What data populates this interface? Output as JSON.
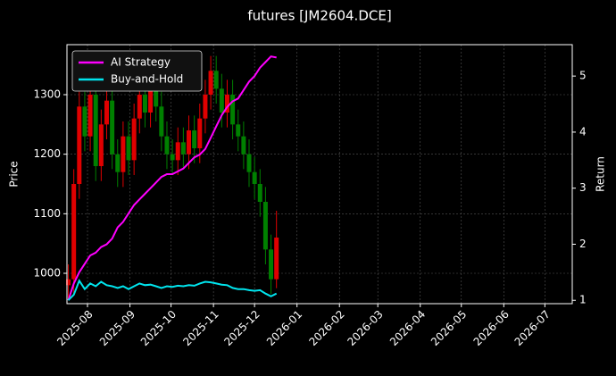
{
  "chart_data": {
    "type": "candlestick",
    "title": "futures [JM2604.DCE]",
    "ylabel": "Price",
    "y2label": "Return",
    "x": [
      "2025-07-18",
      "2025-07-22",
      "2025-07-26",
      "2025-07-30",
      "2025-08-03",
      "2025-08-07",
      "2025-08-11",
      "2025-08-15",
      "2025-08-19",
      "2025-08-23",
      "2025-08-27",
      "2025-08-31",
      "2025-09-04",
      "2025-09-08",
      "2025-09-12",
      "2025-09-16",
      "2025-09-20",
      "2025-09-24",
      "2025-09-28",
      "2025-10-02",
      "2025-10-06",
      "2025-10-10",
      "2025-10-14",
      "2025-10-18",
      "2025-10-22",
      "2025-10-26",
      "2025-10-30",
      "2025-11-03",
      "2025-11-07",
      "2025-11-11",
      "2025-11-15",
      "2025-11-19",
      "2025-11-23",
      "2025-11-27",
      "2025-12-01",
      "2025-12-05",
      "2025-12-09",
      "2025-12-13",
      "2025-12-17"
    ],
    "open": [
      980,
      990,
      1150,
      1280,
      1230,
      1300,
      1180,
      1250,
      1290,
      1200,
      1170,
      1230,
      1190,
      1260,
      1300,
      1270,
      1320,
      1280,
      1230,
      1200,
      1190,
      1220,
      1200,
      1240,
      1210,
      1260,
      1300,
      1340,
      1310,
      1270,
      1300,
      1250,
      1230,
      1200,
      1170,
      1150,
      1120,
      1040,
      990
    ],
    "high": [
      1015,
      1175,
      1305,
      1305,
      1325,
      1325,
      1275,
      1315,
      1315,
      1225,
      1255,
      1255,
      1285,
      1325,
      1325,
      1345,
      1345,
      1305,
      1255,
      1225,
      1245,
      1245,
      1265,
      1265,
      1285,
      1325,
      1365,
      1365,
      1335,
      1325,
      1325,
      1275,
      1255,
      1225,
      1195,
      1175,
      1145,
      1065,
      1105
    ],
    "low": [
      955,
      965,
      1125,
      1205,
      1205,
      1155,
      1155,
      1225,
      1175,
      1145,
      1145,
      1165,
      1165,
      1235,
      1245,
      1245,
      1255,
      1205,
      1175,
      1165,
      1165,
      1175,
      1175,
      1185,
      1185,
      1235,
      1275,
      1285,
      1245,
      1245,
      1225,
      1205,
      1175,
      1145,
      1125,
      1095,
      1015,
      965,
      975
    ],
    "close": [
      990,
      1150,
      1280,
      1230,
      1300,
      1180,
      1250,
      1290,
      1200,
      1170,
      1230,
      1190,
      1260,
      1300,
      1270,
      1320,
      1280,
      1230,
      1200,
      1190,
      1220,
      1200,
      1240,
      1210,
      1260,
      1300,
      1340,
      1310,
      1270,
      1300,
      1250,
      1230,
      1200,
      1170,
      1150,
      1120,
      1040,
      990,
      1060
    ],
    "up_color": "#e00000",
    "down_color": "#008000",
    "series": [
      {
        "name": "AI Strategy",
        "color": "#ff00ff",
        "axis": "y2",
        "values": [
          1.0,
          1.3,
          1.5,
          1.65,
          1.8,
          1.85,
          1.95,
          2.0,
          2.1,
          2.3,
          2.4,
          2.55,
          2.7,
          2.8,
          2.9,
          3.0,
          3.1,
          3.2,
          3.25,
          3.25,
          3.3,
          3.35,
          3.45,
          3.55,
          3.6,
          3.7,
          3.9,
          4.1,
          4.3,
          4.45,
          4.55,
          4.6,
          4.75,
          4.9,
          5.0,
          5.15,
          5.25,
          5.35,
          5.33
        ]
      },
      {
        "name": "Buy-and-Hold",
        "color": "#00e5ee",
        "axis": "y2",
        "values": [
          1.0,
          1.1,
          1.35,
          1.2,
          1.3,
          1.25,
          1.33,
          1.27,
          1.25,
          1.22,
          1.25,
          1.2,
          1.25,
          1.3,
          1.27,
          1.28,
          1.25,
          1.22,
          1.25,
          1.24,
          1.26,
          1.25,
          1.27,
          1.26,
          1.3,
          1.33,
          1.32,
          1.3,
          1.28,
          1.27,
          1.22,
          1.2,
          1.2,
          1.18,
          1.17,
          1.18,
          1.12,
          1.07,
          1.12
        ]
      }
    ],
    "xlim": [
      "2025-07-17",
      "2026-07-21"
    ],
    "xticks": [
      {
        "value": "2025-08-01",
        "label": "2025-08"
      },
      {
        "value": "2025-09-01",
        "label": "2025-09"
      },
      {
        "value": "2025-10-01",
        "label": "2025-10"
      },
      {
        "value": "2025-11-01",
        "label": "2025-11"
      },
      {
        "value": "2025-12-01",
        "label": "2025-12"
      },
      {
        "value": "2026-01-01",
        "label": "2026-01"
      },
      {
        "value": "2026-02-01",
        "label": "2026-02"
      },
      {
        "value": "2026-03-01",
        "label": "2026-03"
      },
      {
        "value": "2026-04-01",
        "label": "2026-04"
      },
      {
        "value": "2026-05-01",
        "label": "2026-05"
      },
      {
        "value": "2026-06-01",
        "label": "2026-06"
      },
      {
        "value": "2026-07-01",
        "label": "2026-07"
      }
    ],
    "ylim": [
      949,
      1384
    ],
    "yticks": [
      1000,
      1100,
      1200,
      1300
    ],
    "y2lim": [
      0.94,
      5.56
    ],
    "y2ticks": [
      1,
      2,
      3,
      4,
      5
    ],
    "grid": true,
    "legend": "upper left"
  }
}
